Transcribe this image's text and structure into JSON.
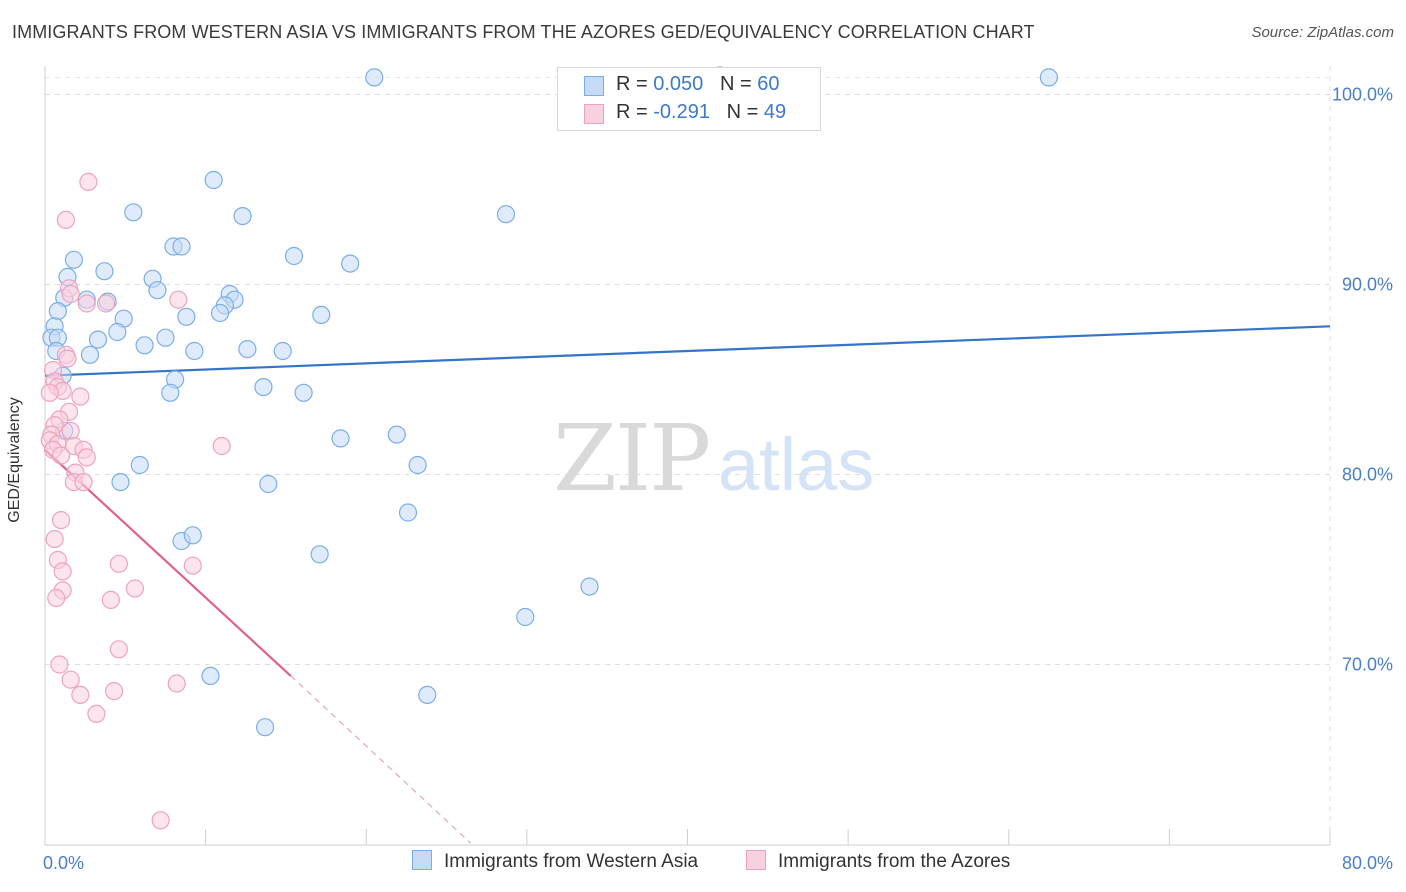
{
  "title": "IMMIGRANTS FROM WESTERN ASIA VS IMMIGRANTS FROM THE AZORES GED/EQUIVALENCY CORRELATION CHART",
  "source": "Source: ZipAtlas.com",
  "watermark": {
    "zip": "ZIP",
    "atlas": "atlas"
  },
  "legend": {
    "rows": [
      {
        "r_label": "R = ",
        "r_value": "0.050",
        "n_label": "N = ",
        "n_value": "60"
      },
      {
        "r_label": "R = ",
        "r_value": "-0.291",
        "n_label": "N = ",
        "n_value": "49"
      }
    ]
  },
  "chart_data": {
    "type": "scatter",
    "title": "IMMIGRANTS FROM WESTERN ASIA VS IMMIGRANTS FROM THE AZORES GED/EQUIVALENCY CORRELATION CHART",
    "xlabel": "",
    "ylabel": "GED/Equivalency",
    "xlim": [
      0,
      80
    ],
    "ylim": [
      60.5,
      101.5
    ],
    "x_tick_labels": [
      {
        "value": 0,
        "label": "0.0%"
      },
      {
        "value": 80,
        "label": "80.0%"
      }
    ],
    "y_tick_labels": [
      {
        "value": 100,
        "label": "100.0%"
      },
      {
        "value": 90,
        "label": "90.0%"
      },
      {
        "value": 80,
        "label": "80.0%"
      },
      {
        "value": 70,
        "label": "70.0%"
      }
    ],
    "grid": true,
    "legend_position": "top-center",
    "series": [
      {
        "name": "Immigrants from Western Asia",
        "color": "#7aaee8",
        "fill": "#c5dbf5",
        "trend": {
          "x": [
            0,
            80
          ],
          "y": [
            85.2,
            87.8
          ],
          "color": "#3574c8"
        },
        "points": [
          [
            20.5,
            100.9
          ],
          [
            42.0,
            101.0
          ],
          [
            62.5,
            100.9
          ],
          [
            10.5,
            95.5
          ],
          [
            5.5,
            93.8
          ],
          [
            12.3,
            93.6
          ],
          [
            28.7,
            93.7
          ],
          [
            8.0,
            92.0
          ],
          [
            8.5,
            92.0
          ],
          [
            15.5,
            91.5
          ],
          [
            19.0,
            91.1
          ],
          [
            1.8,
            91.3
          ],
          [
            3.7,
            90.7
          ],
          [
            1.4,
            90.4
          ],
          [
            6.7,
            90.3
          ],
          [
            7.0,
            89.7
          ],
          [
            11.5,
            89.5
          ],
          [
            1.2,
            89.3
          ],
          [
            2.6,
            89.2
          ],
          [
            3.9,
            89.1
          ],
          [
            11.8,
            89.2
          ],
          [
            11.2,
            88.9
          ],
          [
            0.8,
            88.6
          ],
          [
            4.9,
            88.2
          ],
          [
            8.8,
            88.3
          ],
          [
            10.9,
            88.5
          ],
          [
            17.2,
            88.4
          ],
          [
            0.6,
            87.8
          ],
          [
            0.4,
            87.2
          ],
          [
            0.8,
            87.2
          ],
          [
            3.3,
            87.1
          ],
          [
            4.5,
            87.5
          ],
          [
            6.2,
            86.8
          ],
          [
            7.5,
            87.2
          ],
          [
            9.3,
            86.5
          ],
          [
            12.6,
            86.6
          ],
          [
            14.8,
            86.5
          ],
          [
            13.6,
            84.6
          ],
          [
            1.1,
            85.2
          ],
          [
            8.1,
            85.0
          ],
          [
            16.1,
            84.3
          ],
          [
            1.2,
            82.3
          ],
          [
            18.4,
            81.9
          ],
          [
            21.9,
            82.1
          ],
          [
            23.2,
            80.5
          ],
          [
            5.9,
            80.5
          ],
          [
            4.7,
            79.6
          ],
          [
            13.9,
            79.5
          ],
          [
            22.6,
            78.0
          ],
          [
            8.5,
            76.5
          ],
          [
            9.2,
            76.8
          ],
          [
            17.1,
            75.8
          ],
          [
            33.9,
            74.1
          ],
          [
            29.9,
            72.5
          ],
          [
            10.3,
            69.4
          ],
          [
            23.8,
            68.4
          ],
          [
            13.7,
            66.7
          ],
          [
            7.8,
            84.3
          ],
          [
            2.8,
            86.3
          ],
          [
            0.7,
            86.5
          ]
        ]
      },
      {
        "name": "Immigrants from the Azores",
        "color": "#eea3bd",
        "fill": "#f9d0de",
        "trend": {
          "x": [
            0,
            15.3
          ],
          "y": [
            81.3,
            69.4
          ],
          "color": "#e0608f"
        },
        "trend_extension": {
          "x": [
            15.3,
            26.5
          ],
          "y": [
            69.4,
            60.6
          ],
          "color": "#e0a6bc"
        },
        "points": [
          [
            2.7,
            95.4
          ],
          [
            1.3,
            93.4
          ],
          [
            1.5,
            89.8
          ],
          [
            1.6,
            89.5
          ],
          [
            8.3,
            89.2
          ],
          [
            2.6,
            89.0
          ],
          [
            1.3,
            86.3
          ],
          [
            1.4,
            86.1
          ],
          [
            0.5,
            85.5
          ],
          [
            0.6,
            84.9
          ],
          [
            0.8,
            84.6
          ],
          [
            1.1,
            84.4
          ],
          [
            0.3,
            84.3
          ],
          [
            2.2,
            84.1
          ],
          [
            1.5,
            83.3
          ],
          [
            0.9,
            82.9
          ],
          [
            0.6,
            82.6
          ],
          [
            1.6,
            82.3
          ],
          [
            0.4,
            82.1
          ],
          [
            0.3,
            81.8
          ],
          [
            0.8,
            81.6
          ],
          [
            1.8,
            81.5
          ],
          [
            0.5,
            81.3
          ],
          [
            2.4,
            81.3
          ],
          [
            1.0,
            81.0
          ],
          [
            2.6,
            80.9
          ],
          [
            11.0,
            81.5
          ],
          [
            1.9,
            80.1
          ],
          [
            1.8,
            79.6
          ],
          [
            2.4,
            79.6
          ],
          [
            1.0,
            77.6
          ],
          [
            0.6,
            76.6
          ],
          [
            0.8,
            75.5
          ],
          [
            4.6,
            75.3
          ],
          [
            9.2,
            75.2
          ],
          [
            1.1,
            74.9
          ],
          [
            5.6,
            74.0
          ],
          [
            1.1,
            73.9
          ],
          [
            0.7,
            73.5
          ],
          [
            4.1,
            73.4
          ],
          [
            4.6,
            70.8
          ],
          [
            0.9,
            70.0
          ],
          [
            1.6,
            69.2
          ],
          [
            8.2,
            69.0
          ],
          [
            2.2,
            68.4
          ],
          [
            4.3,
            68.6
          ],
          [
            3.2,
            67.4
          ],
          [
            7.2,
            61.8
          ],
          [
            3.8,
            89.0
          ]
        ]
      }
    ]
  },
  "bottom_legend": [
    {
      "label": "Immigrants from Western Asia",
      "color": "#7aaee8",
      "fill": "#c5dbf5"
    },
    {
      "label": "Immigrants from the Azores",
      "color": "#eea3bd",
      "fill": "#f9d0de"
    }
  ]
}
